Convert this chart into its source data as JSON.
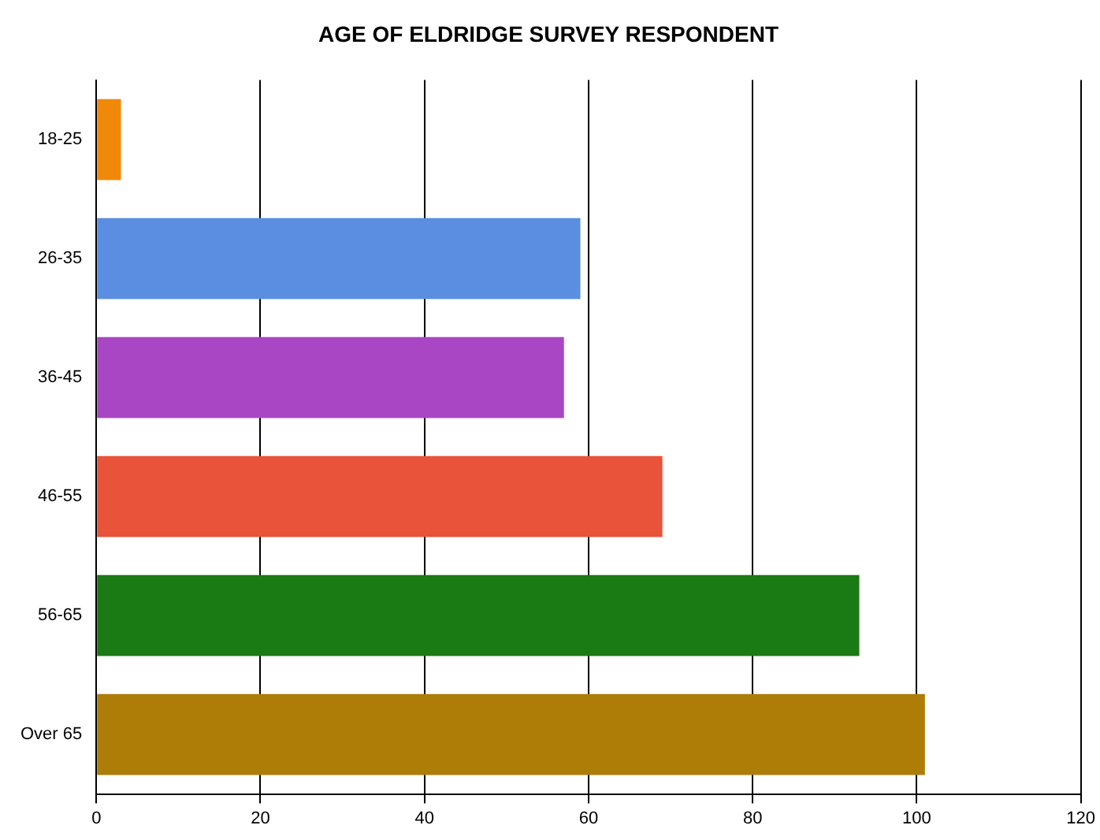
{
  "chart_data": {
    "type": "bar",
    "title": "AGE OF ELDRIDGE SURVEY RESPONDENT",
    "orientation": "horizontal",
    "categories": [
      "18-25",
      "26-35",
      "36-45",
      "46-55",
      "56-65",
      "Over 65"
    ],
    "values": [
      3,
      59,
      57,
      69,
      93,
      101
    ],
    "colors": [
      "#f0880a",
      "#5b8ee0",
      "#a846c4",
      "#e8533a",
      "#1a7a14",
      "#ad7d08"
    ],
    "xlim": [
      0,
      120
    ],
    "xticks": [
      0,
      20,
      40,
      60,
      80,
      100,
      120
    ],
    "grid": "x",
    "legend": false
  }
}
